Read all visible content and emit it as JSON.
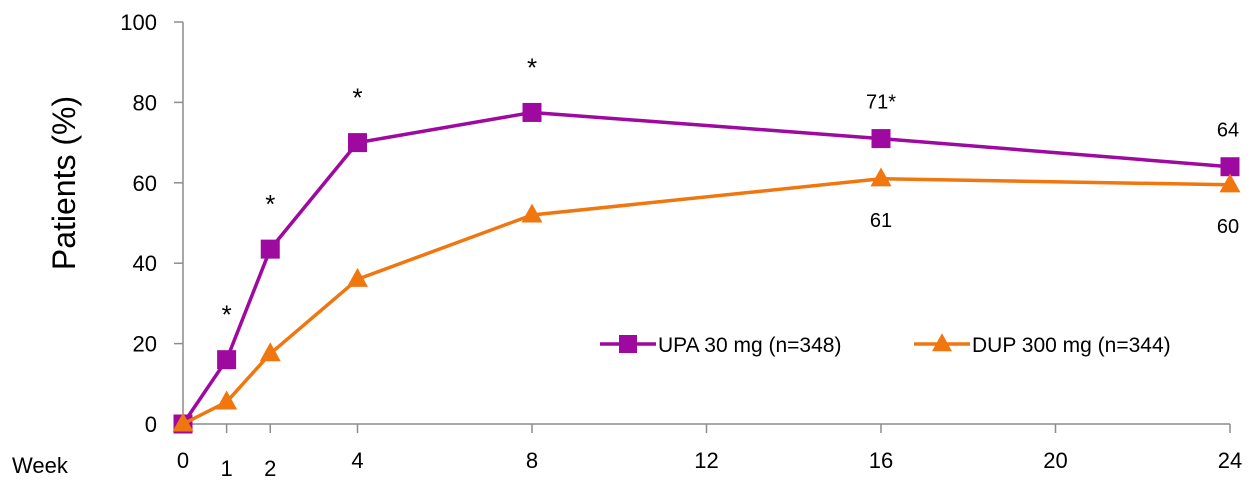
{
  "chart_data": {
    "type": "line",
    "ylabel": "Patients (%)",
    "x_axis_prefix": "Week",
    "ylim": [
      0,
      100
    ],
    "yticks": [
      0,
      20,
      40,
      60,
      80,
      100
    ],
    "xlim": [
      0,
      24
    ],
    "xticks": [
      0,
      1,
      2,
      4,
      8,
      12,
      16,
      20,
      24
    ],
    "legend_position": "lower-right",
    "series": [
      {
        "name": "UPA 30 mg (n=348)",
        "color": "#9E0AA0",
        "marker": "square",
        "x": [
          0,
          1,
          2,
          4,
          8,
          16,
          24
        ],
        "y": [
          0,
          16,
          43.5,
          70,
          77.5,
          71,
          64
        ]
      },
      {
        "name": "DUP 300 mg (n=344)",
        "color": "#F0760F",
        "marker": "triangle",
        "x": [
          0,
          1,
          2,
          4,
          8,
          16,
          24
        ],
        "y": [
          0,
          5.5,
          17.5,
          36,
          52,
          61,
          59.5
        ]
      }
    ],
    "annotations": [
      {
        "x": 1,
        "y": 16,
        "text": "*",
        "series": 0,
        "pos": "above"
      },
      {
        "x": 2,
        "y": 43.5,
        "text": "*",
        "series": 0,
        "pos": "above"
      },
      {
        "x": 4,
        "y": 70,
        "text": "*",
        "series": 0,
        "pos": "above"
      },
      {
        "x": 8,
        "y": 77.5,
        "text": "*",
        "series": 0,
        "pos": "above"
      },
      {
        "x": 16,
        "y": 71,
        "text": "71*",
        "series": 0,
        "pos": "above"
      },
      {
        "x": 24,
        "y": 64,
        "text": "64",
        "series": 0,
        "pos": "above"
      },
      {
        "x": 16,
        "y": 61,
        "text": "61",
        "series": 1,
        "pos": "below"
      },
      {
        "x": 24,
        "y": 59.5,
        "text": "60",
        "series": 1,
        "pos": "below"
      }
    ]
  }
}
